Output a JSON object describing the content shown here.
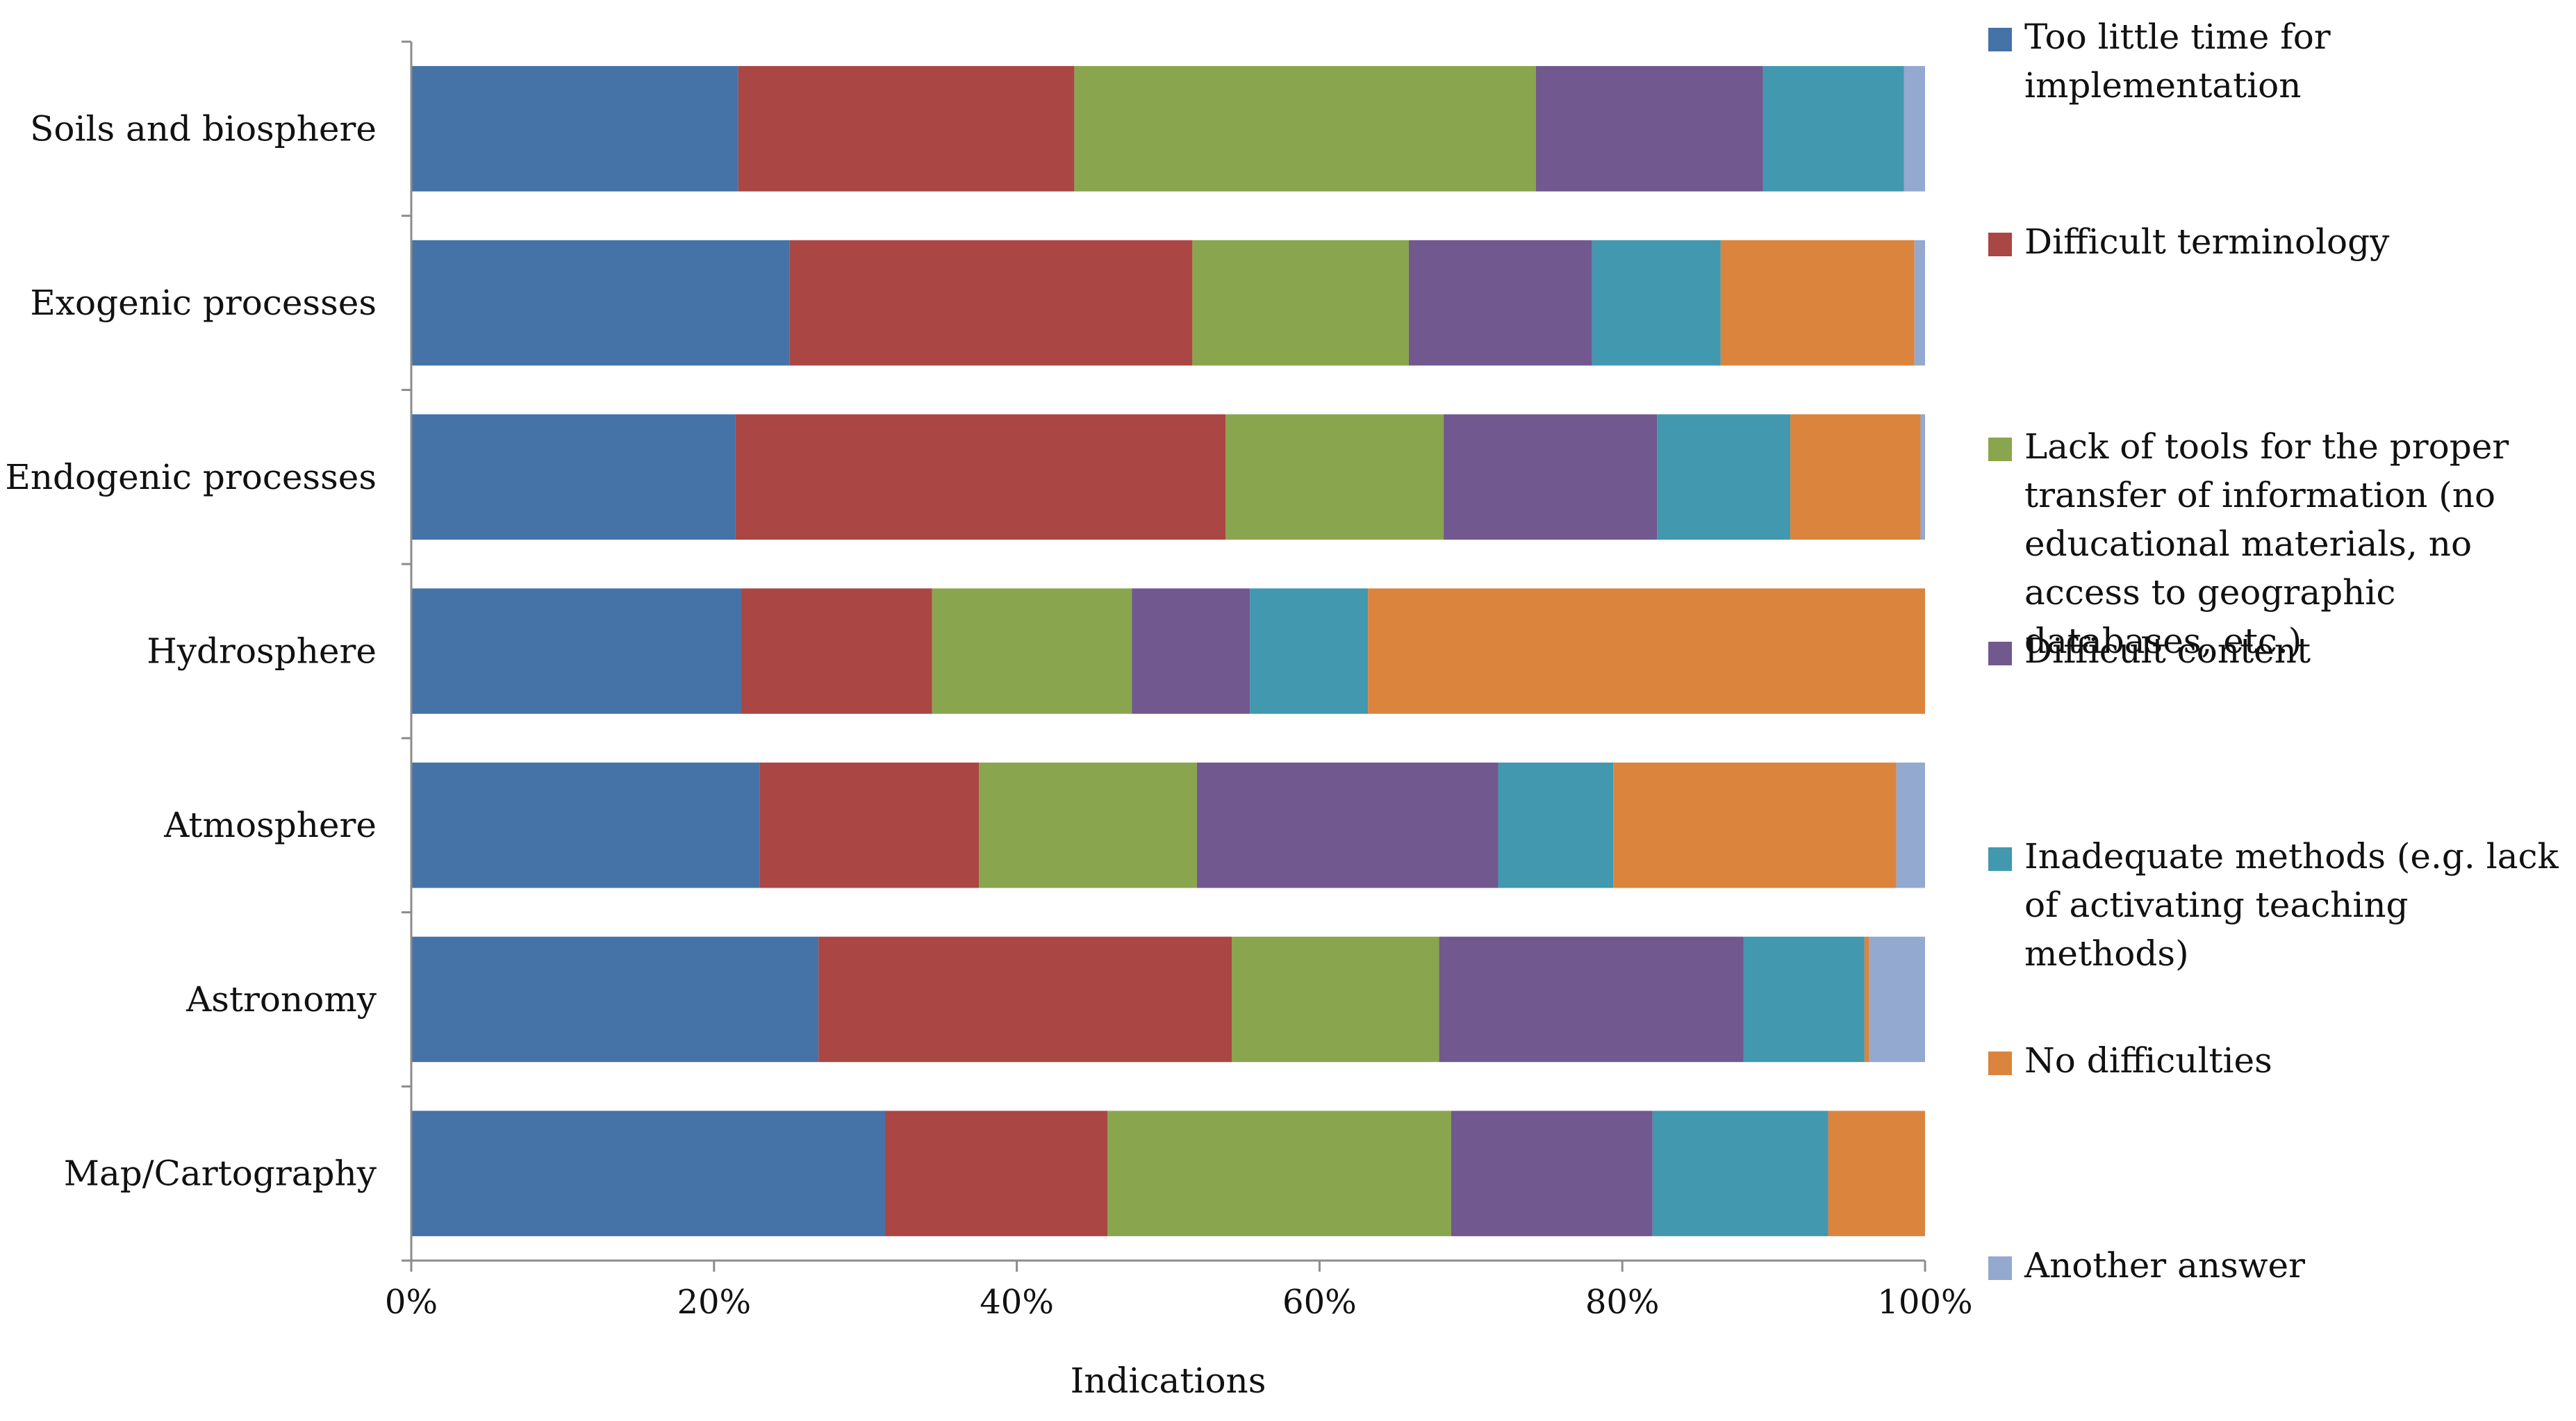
{
  "chart_data": {
    "type": "bar",
    "orientation": "horizontal",
    "stacked": "percent",
    "title": "",
    "xlabel": "Indications",
    "ylabel": "",
    "xlim": [
      0,
      100
    ],
    "x_ticks": [
      "0%",
      "20%",
      "40%",
      "60%",
      "80%",
      "100%"
    ],
    "categories": [
      "Soils and biosphere",
      "Exogenic processes",
      "Endogenic processes",
      "Hydrosphere",
      "Atmosphere",
      "Astronomy",
      "Map/Cartography"
    ],
    "series": [
      {
        "name": "Too little time for implementation",
        "color": "#4572A7",
        "values": [
          21.6,
          25.0,
          21.4,
          21.8,
          23.0,
          26.9,
          31.3
        ]
      },
      {
        "name": "Difficult terminology",
        "color": "#AA4643",
        "values": [
          22.2,
          26.6,
          32.4,
          12.6,
          14.5,
          27.3,
          14.7
        ]
      },
      {
        "name": "Lack of tools for the proper transfer of information (no educational materials, no access to geographic databases, etc.)",
        "color": "#89A54E",
        "values": [
          30.5,
          14.3,
          14.4,
          13.2,
          14.4,
          13.7,
          22.7
        ]
      },
      {
        "name": "Difficult content",
        "color": "#71588F",
        "values": [
          15.0,
          12.1,
          14.1,
          7.8,
          19.9,
          20.1,
          13.3
        ]
      },
      {
        "name": "Inadequate methods (e.g. lack of activating teaching methods)",
        "color": "#4198AF",
        "values": [
          9.3,
          8.5,
          8.8,
          7.8,
          7.6,
          8.0,
          11.6
        ]
      },
      {
        "name": "No difficulties",
        "color": "#DB843D",
        "values": [
          0,
          12.8,
          8.6,
          36.8,
          18.7,
          0.3,
          6.4
        ]
      },
      {
        "name": "Another answer",
        "color": "#93A9CF",
        "values": [
          1.4,
          0.7,
          0.3,
          0,
          1.9,
          3.7,
          0
        ]
      }
    ]
  }
}
